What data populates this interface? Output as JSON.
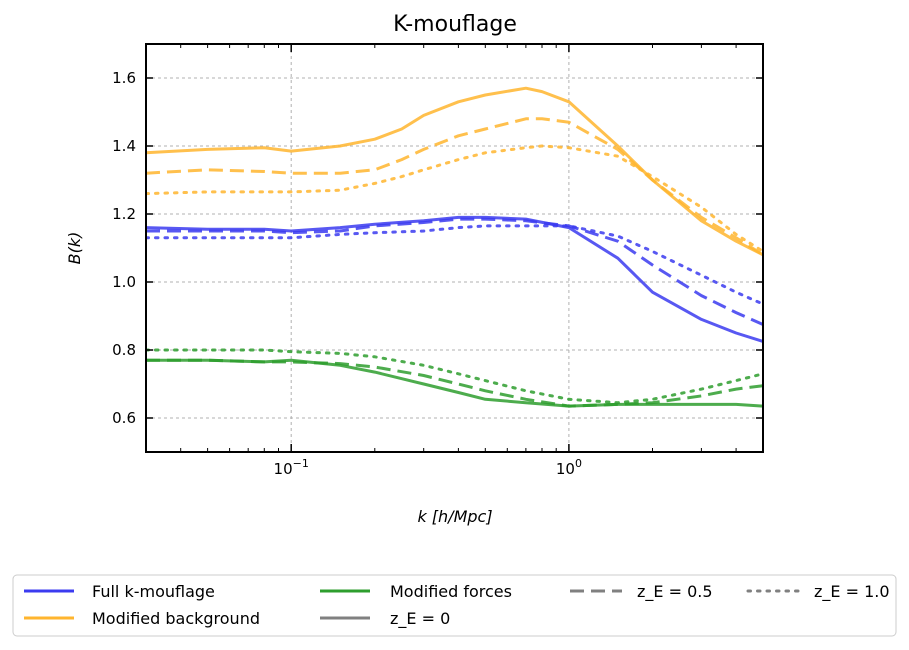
{
  "chart_data": {
    "type": "line",
    "title": "K-mouflage",
    "xlabel": "k [h/Mpc]",
    "ylabel": "B(k)",
    "xscale": "log",
    "xlim": [
      0.03,
      5
    ],
    "ylim": [
      0.5,
      1.7
    ],
    "grid": true,
    "legend_position": "bottom",
    "x_ticks": [
      {
        "value": 0.1,
        "base": "10",
        "exp": "−1"
      },
      {
        "value": 1,
        "base": "10",
        "exp": "0"
      }
    ],
    "y_ticks": [
      "0.6",
      "0.8",
      "1.0",
      "1.2",
      "1.4",
      "1.6"
    ],
    "colors": {
      "full": "#3b3bf0",
      "background": "#ffb52e",
      "forces": "#2e9e2e",
      "neutral": "#808080"
    },
    "legend": {
      "full": "Full k-mouflage",
      "background": "Modified background",
      "forces": "Modified forces",
      "z0": "z_E = 0",
      "z05": "z_E = 0.5",
      "z10": "z_E = 1.0"
    },
    "series": [
      {
        "name": "Full k-mouflage, z_E=0",
        "group": "full",
        "style": "solid",
        "x": [
          0.03,
          0.05,
          0.08,
          0.1,
          0.15,
          0.2,
          0.3,
          0.4,
          0.5,
          0.7,
          1.0,
          1.5,
          2.0,
          3.0,
          4.0,
          5.0
        ],
        "y": [
          1.16,
          1.155,
          1.155,
          1.15,
          1.16,
          1.17,
          1.18,
          1.19,
          1.19,
          1.185,
          1.16,
          1.07,
          0.97,
          0.89,
          0.85,
          0.825
        ]
      },
      {
        "name": "Full k-mouflage, z_E=0.5",
        "group": "full",
        "style": "dashed",
        "x": [
          0.03,
          0.05,
          0.08,
          0.1,
          0.15,
          0.2,
          0.3,
          0.4,
          0.5,
          0.7,
          1.0,
          1.5,
          2.0,
          3.0,
          4.0,
          5.0
        ],
        "y": [
          1.15,
          1.15,
          1.15,
          1.145,
          1.15,
          1.165,
          1.175,
          1.185,
          1.185,
          1.18,
          1.165,
          1.12,
          1.05,
          0.96,
          0.91,
          0.875
        ]
      },
      {
        "name": "Full k-mouflage, z_E=1.0",
        "group": "full",
        "style": "dotted",
        "x": [
          0.03,
          0.05,
          0.08,
          0.1,
          0.15,
          0.2,
          0.3,
          0.4,
          0.5,
          0.7,
          1.0,
          1.5,
          2.0,
          3.0,
          4.0,
          5.0
        ],
        "y": [
          1.13,
          1.13,
          1.13,
          1.13,
          1.14,
          1.145,
          1.15,
          1.16,
          1.165,
          1.165,
          1.165,
          1.135,
          1.09,
          1.02,
          0.97,
          0.935
        ]
      },
      {
        "name": "Modified background, z_E=0",
        "group": "background",
        "style": "solid",
        "x": [
          0.03,
          0.05,
          0.08,
          0.1,
          0.15,
          0.2,
          0.25,
          0.3,
          0.4,
          0.5,
          0.7,
          0.8,
          1.0,
          1.5,
          2.0,
          3.0,
          4.0,
          5.0
        ],
        "y": [
          1.38,
          1.39,
          1.395,
          1.385,
          1.4,
          1.42,
          1.45,
          1.49,
          1.53,
          1.55,
          1.57,
          1.56,
          1.53,
          1.4,
          1.3,
          1.18,
          1.12,
          1.08
        ]
      },
      {
        "name": "Modified background, z_E=0.5",
        "group": "background",
        "style": "dashed",
        "x": [
          0.03,
          0.05,
          0.08,
          0.1,
          0.15,
          0.2,
          0.25,
          0.3,
          0.4,
          0.5,
          0.7,
          0.8,
          1.0,
          1.5,
          2.0,
          3.0,
          4.0,
          5.0
        ],
        "y": [
          1.32,
          1.33,
          1.325,
          1.32,
          1.32,
          1.33,
          1.36,
          1.39,
          1.43,
          1.45,
          1.48,
          1.48,
          1.47,
          1.39,
          1.3,
          1.19,
          1.13,
          1.08
        ]
      },
      {
        "name": "Modified background, z_E=1.0",
        "group": "background",
        "style": "dotted",
        "x": [
          0.03,
          0.05,
          0.08,
          0.1,
          0.15,
          0.2,
          0.25,
          0.3,
          0.4,
          0.5,
          0.7,
          0.8,
          1.0,
          1.5,
          2.0,
          3.0,
          4.0,
          5.0
        ],
        "y": [
          1.26,
          1.265,
          1.265,
          1.265,
          1.27,
          1.29,
          1.31,
          1.33,
          1.36,
          1.38,
          1.395,
          1.4,
          1.395,
          1.37,
          1.31,
          1.22,
          1.14,
          1.09
        ]
      },
      {
        "name": "Modified forces, z_E=0",
        "group": "forces",
        "style": "solid",
        "x": [
          0.03,
          0.05,
          0.08,
          0.1,
          0.15,
          0.2,
          0.3,
          0.4,
          0.5,
          0.7,
          1.0,
          1.5,
          2.0,
          3.0,
          4.0,
          5.0
        ],
        "y": [
          0.77,
          0.77,
          0.765,
          0.77,
          0.755,
          0.735,
          0.7,
          0.675,
          0.655,
          0.645,
          0.635,
          0.64,
          0.64,
          0.64,
          0.64,
          0.635
        ]
      },
      {
        "name": "Modified forces, z_E=0.5",
        "group": "forces",
        "style": "dashed",
        "x": [
          0.03,
          0.05,
          0.08,
          0.1,
          0.15,
          0.2,
          0.3,
          0.4,
          0.5,
          0.7,
          1.0,
          1.5,
          2.0,
          3.0,
          4.0,
          5.0
        ],
        "y": [
          0.77,
          0.77,
          0.765,
          0.765,
          0.76,
          0.75,
          0.725,
          0.7,
          0.68,
          0.655,
          0.635,
          0.64,
          0.645,
          0.665,
          0.685,
          0.695
        ]
      },
      {
        "name": "Modified forces, z_E=1.0",
        "group": "forces",
        "style": "dotted",
        "x": [
          0.03,
          0.05,
          0.08,
          0.1,
          0.15,
          0.2,
          0.3,
          0.4,
          0.5,
          0.7,
          1.0,
          1.5,
          2.0,
          3.0,
          4.0,
          5.0
        ],
        "y": [
          0.8,
          0.8,
          0.8,
          0.795,
          0.79,
          0.78,
          0.755,
          0.73,
          0.71,
          0.68,
          0.655,
          0.645,
          0.655,
          0.685,
          0.71,
          0.73
        ]
      }
    ]
  }
}
